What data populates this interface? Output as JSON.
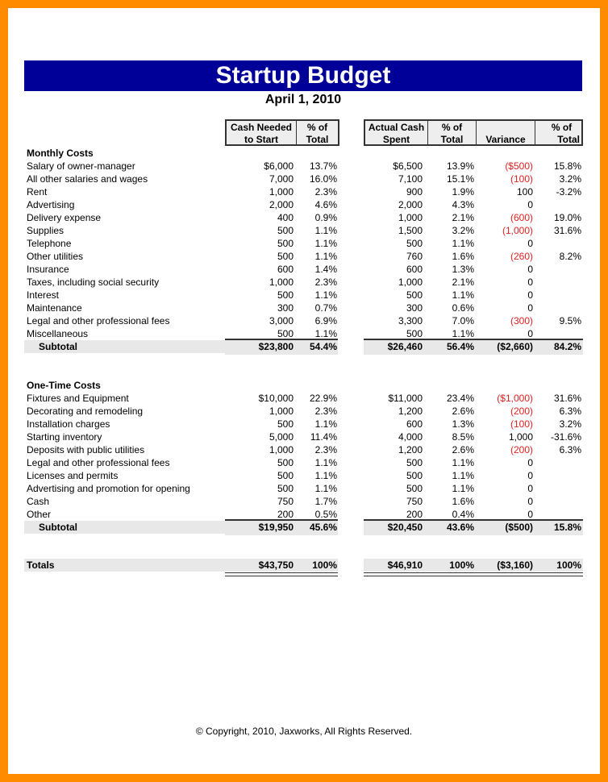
{
  "title": "Startup Budget",
  "date": "April 1, 2010",
  "headers": {
    "cash_needed": [
      "Cash Needed",
      "to Start"
    ],
    "pct1": [
      "% of",
      "Total"
    ],
    "actual": [
      "Actual Cash",
      "Spent"
    ],
    "pct2": [
      "% of",
      "Total"
    ],
    "variance": "Variance",
    "pct3": [
      "% of",
      "Total"
    ]
  },
  "colors": {
    "title_bg": "#000099",
    "negative": "#e02020",
    "border": "#ff8c00"
  },
  "monthly": {
    "heading": "Monthly Costs",
    "rows": [
      [
        "Salary of owner-manager",
        "$6,000",
        "13.7%",
        "$6,500",
        "13.9%",
        "($500)",
        "15.8%"
      ],
      [
        "All other salaries and wages",
        "7,000",
        "16.0%",
        "7,100",
        "15.1%",
        "(100)",
        "3.2%"
      ],
      [
        "Rent",
        "1,000",
        "2.3%",
        "900",
        "1.9%",
        "100",
        "-3.2%"
      ],
      [
        "Advertising",
        "2,000",
        "4.6%",
        "2,000",
        "4.3%",
        "0",
        ""
      ],
      [
        "Delivery expense",
        "400",
        "0.9%",
        "1,000",
        "2.1%",
        "(600)",
        "19.0%"
      ],
      [
        "Supplies",
        "500",
        "1.1%",
        "1,500",
        "3.2%",
        "(1,000)",
        "31.6%"
      ],
      [
        "Telephone",
        "500",
        "1.1%",
        "500",
        "1.1%",
        "0",
        ""
      ],
      [
        "Other utilities",
        "500",
        "1.1%",
        "760",
        "1.6%",
        "(260)",
        "8.2%"
      ],
      [
        "Insurance",
        "600",
        "1.4%",
        "600",
        "1.3%",
        "0",
        ""
      ],
      [
        "Taxes, including social security",
        "1,000",
        "2.3%",
        "1,000",
        "2.1%",
        "0",
        ""
      ],
      [
        "Interest",
        "500",
        "1.1%",
        "500",
        "1.1%",
        "0",
        ""
      ],
      [
        "Maintenance",
        "300",
        "0.7%",
        "300",
        "0.6%",
        "0",
        ""
      ],
      [
        "Legal and other professional fees",
        "3,000",
        "6.9%",
        "3,300",
        "7.0%",
        "(300)",
        "9.5%"
      ],
      [
        "Miscellaneous",
        "500",
        "1.1%",
        "500",
        "1.1%",
        "0",
        ""
      ]
    ],
    "subtotal": [
      "Subtotal",
      "$23,800",
      "54.4%",
      "$26,460",
      "56.4%",
      "($2,660)",
      "84.2%"
    ]
  },
  "onetime": {
    "heading": "One-Time Costs",
    "rows": [
      [
        "Fixtures and Equipment",
        "$10,000",
        "22.9%",
        "$11,000",
        "23.4%",
        "($1,000)",
        "31.6%"
      ],
      [
        "Decorating and remodeling",
        "1,000",
        "2.3%",
        "1,200",
        "2.6%",
        "(200)",
        "6.3%"
      ],
      [
        "Installation charges",
        "500",
        "1.1%",
        "600",
        "1.3%",
        "(100)",
        "3.2%"
      ],
      [
        "Starting inventory",
        "5,000",
        "11.4%",
        "4,000",
        "8.5%",
        "1,000",
        "-31.6%"
      ],
      [
        "Deposits with public utilities",
        "1,000",
        "2.3%",
        "1,200",
        "2.6%",
        "(200)",
        "6.3%"
      ],
      [
        "Legal and other professional fees",
        "500",
        "1.1%",
        "500",
        "1.1%",
        "0",
        ""
      ],
      [
        "Licenses and permits",
        "500",
        "1.1%",
        "500",
        "1.1%",
        "0",
        ""
      ],
      [
        "Advertising and promotion for opening",
        "500",
        "1.1%",
        "500",
        "1.1%",
        "0",
        ""
      ],
      [
        "Cash",
        "750",
        "1.7%",
        "750",
        "1.6%",
        "0",
        ""
      ],
      [
        "Other",
        "200",
        "0.5%",
        "200",
        "0.4%",
        "0",
        ""
      ]
    ],
    "subtotal": [
      "Subtotal",
      "$19,950",
      "45.6%",
      "$20,450",
      "43.6%",
      "($500)",
      "15.8%"
    ]
  },
  "totals": [
    "Totals",
    "$43,750",
    "100%",
    "$46,910",
    "100%",
    "($3,160)",
    "100%"
  ],
  "copyright": "© Copyright, 2010, Jaxworks, All Rights Reserved."
}
